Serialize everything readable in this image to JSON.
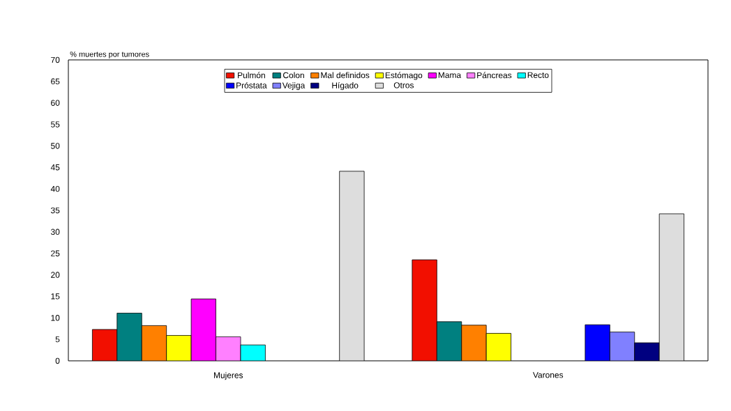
{
  "chart_data": {
    "type": "bar",
    "ylabel": "% muertes por tumores",
    "categories": [
      "Mujeres",
      "Varones"
    ],
    "ylim": [
      0,
      70
    ],
    "yticks": [
      0,
      5,
      10,
      15,
      20,
      25,
      30,
      35,
      40,
      45,
      50,
      55,
      60,
      65,
      70
    ],
    "legend": "top",
    "series": [
      {
        "name": "Pulmón",
        "color": "#f20f00",
        "values": [
          7.3,
          23.5
        ]
      },
      {
        "name": "Colon",
        "color": "#008080",
        "values": [
          11.1,
          9.1
        ]
      },
      {
        "name": "Mal definidos",
        "color": "#ff8000",
        "values": [
          8.2,
          8.3
        ]
      },
      {
        "name": "Estómago",
        "color": "#ffff00",
        "values": [
          5.9,
          6.4
        ]
      },
      {
        "name": "Mama",
        "color": "#ff00ff",
        "values": [
          14.4,
          null
        ]
      },
      {
        "name": "Páncreas",
        "color": "#ff80ff",
        "values": [
          5.6,
          null
        ]
      },
      {
        "name": "Recto",
        "color": "#00ffff",
        "values": [
          3.7,
          null
        ]
      },
      {
        "name": "Próstata",
        "color": "#0000ff",
        "values": [
          null,
          8.4
        ]
      },
      {
        "name": "Vejiga",
        "color": "#8080ff",
        "values": [
          null,
          6.7
        ]
      },
      {
        "name": "Hígado",
        "color": "#000080",
        "values": [
          null,
          4.2
        ]
      },
      {
        "name": "Otros",
        "color": "#dddddd",
        "values": [
          44.1,
          34.2
        ]
      }
    ]
  }
}
